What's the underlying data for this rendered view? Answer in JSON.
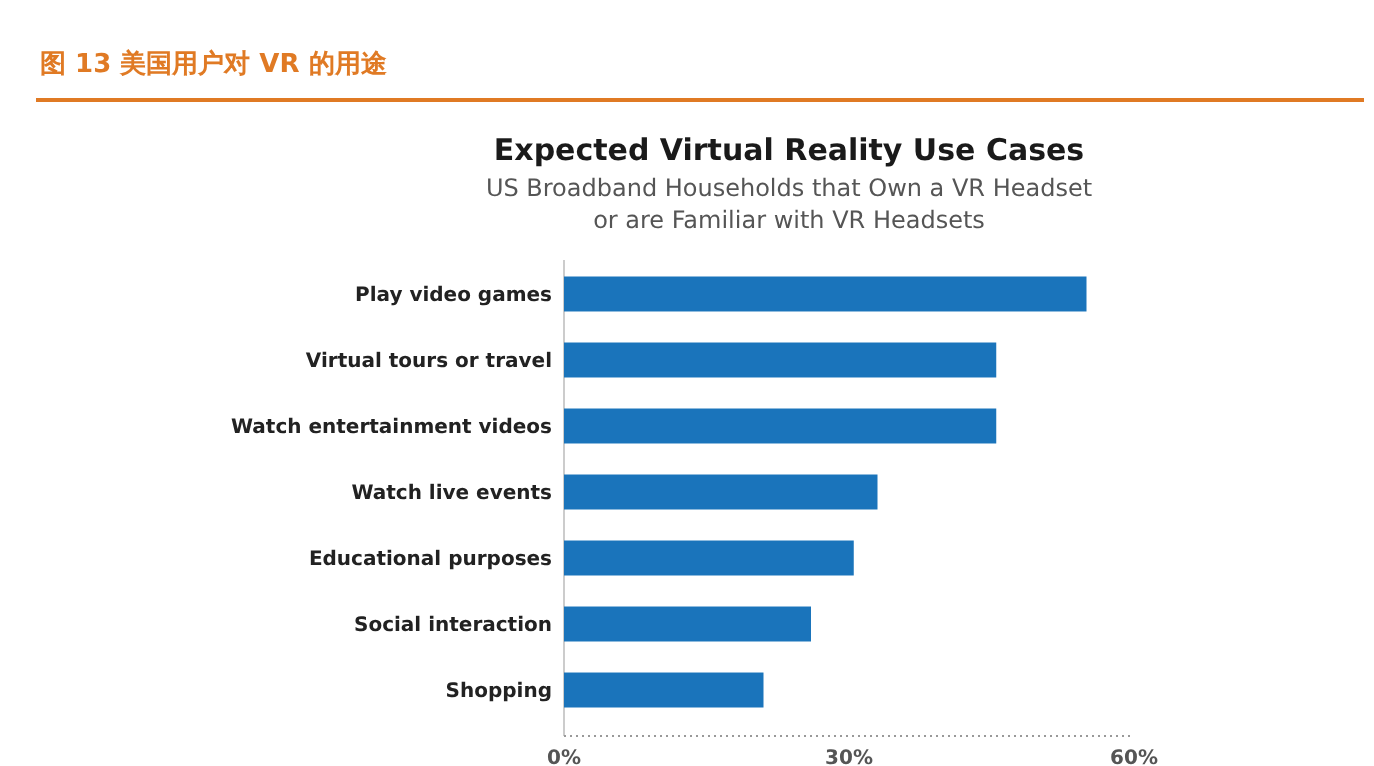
{
  "chart_data": {
    "type": "bar",
    "orientation": "horizontal",
    "title": "Expected Virtual Reality Use Cases",
    "subtitle": "US Broadband Households that Own a VR Headset\nor are Familiar with VR Headsets",
    "annotations": [
      "图 13 美国用户对 VR 的用途"
    ],
    "categories": [
      "Play video games",
      "Virtual tours or travel",
      "Watch entertainment videos",
      "Watch live events",
      "Educational purposes",
      "Social interaction",
      "Shopping"
    ],
    "values": [
      55,
      45.5,
      45.5,
      33,
      30.5,
      26,
      21
    ],
    "color": "#1a74bb",
    "xlim": [
      0,
      60
    ],
    "xticks": [
      {
        "value": 0,
        "label": "0%"
      },
      {
        "value": 30,
        "label": "30%"
      },
      {
        "value": 60,
        "label": "60%"
      }
    ],
    "grid": false
  }
}
